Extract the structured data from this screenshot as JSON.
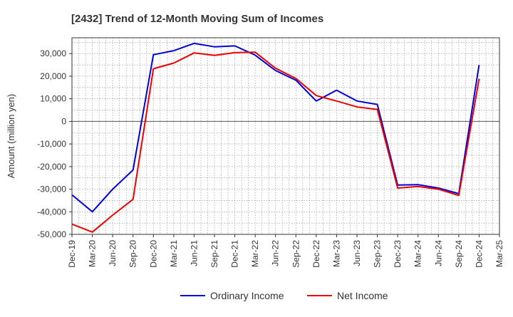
{
  "chart_data": {
    "type": "line",
    "title": "[2432]  Trend of 12-Month Moving Sum of Incomes",
    "ylabel": "Amount (million yen)",
    "xlabel": "",
    "ylim": [
      -50000,
      37000
    ],
    "yticks": [
      30000,
      20000,
      10000,
      0,
      -10000,
      -20000,
      -30000,
      -40000,
      -50000
    ],
    "ytick_labels": [
      "30,000",
      "20,000",
      "10,000",
      "0",
      "-10,000",
      "-20,000",
      "-30,000",
      "-40,000",
      "-50,000"
    ],
    "categories": [
      "Dec-19",
      "Mar-20",
      "Jun-20",
      "Sep-20",
      "Dec-20",
      "Mar-21",
      "Jun-21",
      "Sep-21",
      "Dec-21",
      "Mar-22",
      "Jun-22",
      "Sep-22",
      "Dec-22",
      "Mar-23",
      "Jun-23",
      "Sep-23",
      "Dec-23",
      "Mar-24",
      "Jun-24",
      "Sep-24",
      "Dec-24",
      "Mar-25"
    ],
    "grid": true,
    "legend": "bottom-center",
    "series": [
      {
        "name": "Ordinary Income",
        "color": "#0000dd",
        "values": [
          -32500,
          -40000,
          -30000,
          -21500,
          29500,
          31300,
          34500,
          33000,
          33400,
          29300,
          22500,
          18200,
          9000,
          13800,
          9000,
          7500,
          -28200,
          -28000,
          -29500,
          -32000,
          25000,
          null
        ]
      },
      {
        "name": "Net Income",
        "color": "#ee0000",
        "values": [
          -45500,
          -49000,
          -41500,
          -34500,
          23300,
          25800,
          30300,
          29200,
          30400,
          30600,
          23500,
          19000,
          11400,
          9000,
          6400,
          5300,
          -29500,
          -28800,
          -30000,
          -32800,
          18800,
          null
        ]
      }
    ]
  }
}
